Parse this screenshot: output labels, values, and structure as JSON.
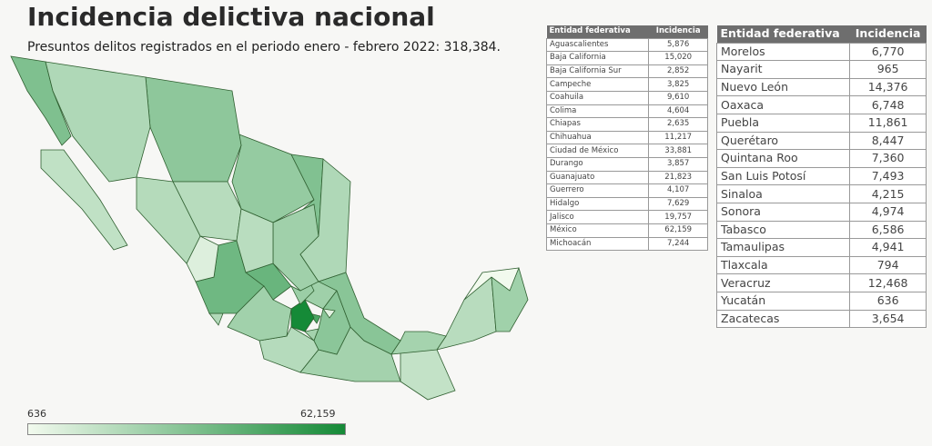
{
  "header": {
    "title": "Incidencia delictiva nacional",
    "subtitle": "Presuntos delitos registrados en el periodo enero - febrero 2022: 318,384."
  },
  "table_headers": {
    "state": "Entidad federativa",
    "value": "Incidencia"
  },
  "table1": [
    {
      "name": "Aguascalientes",
      "value": "5,876"
    },
    {
      "name": "Baja California",
      "value": "15,020"
    },
    {
      "name": "Baja California Sur",
      "value": "2,852"
    },
    {
      "name": "Campeche",
      "value": "3,825"
    },
    {
      "name": "Coahuila",
      "value": "9,610"
    },
    {
      "name": "Colima",
      "value": "4,604"
    },
    {
      "name": "Chiapas",
      "value": "2,635"
    },
    {
      "name": "Chihuahua",
      "value": "11,217"
    },
    {
      "name": "Ciudad de México",
      "value": "33,881"
    },
    {
      "name": "Durango",
      "value": "3,857"
    },
    {
      "name": "Guanajuato",
      "value": "21,823"
    },
    {
      "name": "Guerrero",
      "value": "4,107"
    },
    {
      "name": "Hidalgo",
      "value": "7,629"
    },
    {
      "name": "Jalisco",
      "value": "19,757"
    },
    {
      "name": "México",
      "value": "62,159"
    },
    {
      "name": "Michoacán",
      "value": "7,244"
    }
  ],
  "table2": [
    {
      "name": "Morelos",
      "value": "6,770"
    },
    {
      "name": "Nayarit",
      "value": "965"
    },
    {
      "name": "Nuevo León",
      "value": "14,376"
    },
    {
      "name": "Oaxaca",
      "value": "6,748"
    },
    {
      "name": "Puebla",
      "value": "11,861"
    },
    {
      "name": "Querétaro",
      "value": "8,447"
    },
    {
      "name": "Quintana Roo",
      "value": "7,360"
    },
    {
      "name": "San Luis Potosí",
      "value": "7,493"
    },
    {
      "name": "Sinaloa",
      "value": "4,215"
    },
    {
      "name": "Sonora",
      "value": "4,974"
    },
    {
      "name": "Tabasco",
      "value": "6,586"
    },
    {
      "name": "Tamaulipas",
      "value": "4,941"
    },
    {
      "name": "Tlaxcala",
      "value": "794"
    },
    {
      "name": "Veracruz",
      "value": "12,468"
    },
    {
      "name": "Yucatán",
      "value": "636"
    },
    {
      "name": "Zacatecas",
      "value": "3,654"
    }
  ],
  "legend": {
    "min": "636",
    "max": "62,159",
    "color_low": "#f2faee",
    "color_high": "#158a37"
  }
}
